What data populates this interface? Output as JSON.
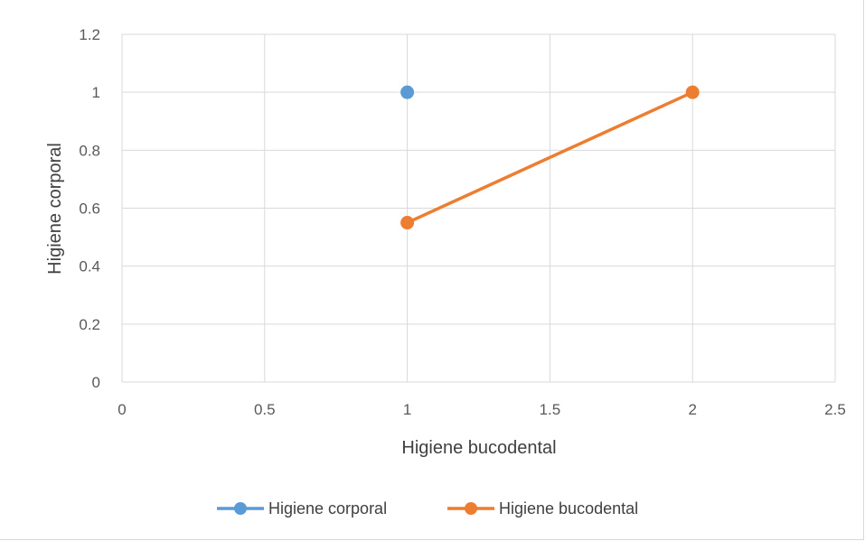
{
  "chart_data": {
    "type": "scatter",
    "title": "",
    "xlabel": "Higiene bucodental",
    "ylabel": "Higiene corporal",
    "xlim": [
      0,
      2.5
    ],
    "ylim": [
      0,
      1.2
    ],
    "x_ticks": [
      "0",
      "0.5",
      "1",
      "1.5",
      "2",
      "2.5"
    ],
    "y_ticks": [
      "0",
      "0.2",
      "0.4",
      "0.6",
      "0.8",
      "1",
      "1.2"
    ],
    "grid": true,
    "legend_position": "bottom",
    "series": [
      {
        "name": "Higiene corporal",
        "color": "#5b9bd5",
        "points": [
          {
            "x": 1,
            "y": 1
          }
        ]
      },
      {
        "name": "Higiene bucodental",
        "color": "#ed7d31",
        "points": [
          {
            "x": 1,
            "y": 0.55
          },
          {
            "x": 2,
            "y": 1
          }
        ]
      }
    ]
  }
}
